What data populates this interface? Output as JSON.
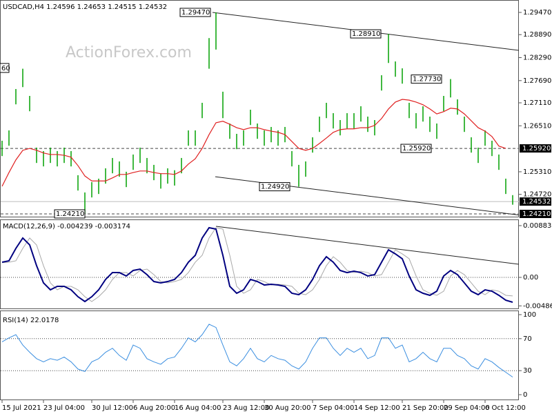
{
  "title": "USDCAD,H4  1.24596 1.24653 1.24515 1.24532",
  "watermark": "ActionForex.com",
  "clipped_label": "60",
  "chart_data": [
    {
      "type": "hilo",
      "color": "#00a000",
      "ma_color": "#e02020",
      "categories": [
        "15 Jul 2021",
        null,
        null,
        null,
        null,
        null,
        "23 Jul 04:00",
        null,
        null,
        null,
        null,
        null,
        null,
        "30 Jul 12:00",
        null,
        null,
        null,
        null,
        null,
        "6 Aug 20:00",
        null,
        null,
        null,
        null,
        null,
        "16 Aug 04:00",
        null,
        null,
        null,
        null,
        null,
        null,
        "23 Aug 12:00",
        null,
        null,
        null,
        null,
        null,
        "30 Aug 20:00",
        null,
        null,
        null,
        null,
        null,
        null,
        "7 Sep 04:00",
        null,
        null,
        null,
        null,
        null,
        "14 Sep 12:00",
        null,
        null,
        null,
        null,
        null,
        null,
        "21 Sep 20:00",
        null,
        null,
        null,
        null,
        null,
        "29 Sep 04:00",
        null,
        null,
        null,
        null,
        null,
        "6 Oct 12:00",
        null,
        null,
        null,
        null
      ],
      "high": [
        1.2612,
        1.2639,
        1.2747,
        1.28,
        1.2729,
        1.2594,
        1.2585,
        1.2594,
        1.2585,
        1.2594,
        1.2585,
        1.2522,
        1.2477,
        1.2504,
        1.2513,
        1.254,
        1.2567,
        1.2558,
        1.2531,
        1.2576,
        1.2594,
        1.2567,
        1.2549,
        1.2527,
        1.254,
        1.2535,
        1.2567,
        1.2639,
        1.2639,
        1.2711,
        1.288,
        1.2947,
        1.274,
        1.2657,
        1.263,
        1.2639,
        1.2693,
        1.2657,
        1.2639,
        1.2648,
        1.2639,
        1.2648,
        1.2585,
        1.2549,
        1.2558,
        1.2621,
        1.2675,
        1.2711,
        1.2684,
        1.2666,
        1.2684,
        1.2684,
        1.2702,
        1.2675,
        1.2666,
        1.2783,
        1.2891,
        1.2819,
        1.2801,
        1.2711,
        1.2684,
        1.2702,
        1.2675,
        1.2657,
        1.2729,
        1.2773,
        1.272,
        1.2675,
        1.2621,
        1.2594,
        1.2639,
        1.2612,
        1.2576,
        1.2513,
        1.247
      ],
      "low": [
        1.2572,
        1.2599,
        1.2707,
        1.2752,
        1.2689,
        1.2554,
        1.2545,
        1.2554,
        1.2545,
        1.2554,
        1.2545,
        1.2482,
        1.2421,
        1.2464,
        1.2473,
        1.25,
        1.2527,
        1.2518,
        1.2491,
        1.2536,
        1.2554,
        1.2527,
        1.2509,
        1.2487,
        1.25,
        1.2495,
        1.2527,
        1.2599,
        1.2599,
        1.2671,
        1.28,
        1.285,
        1.2671,
        1.2617,
        1.259,
        1.2599,
        1.2653,
        1.2617,
        1.2599,
        1.2608,
        1.2599,
        1.2608,
        1.2545,
        1.2492,
        1.2518,
        1.2581,
        1.2635,
        1.2671,
        1.2644,
        1.2626,
        1.2644,
        1.2644,
        1.2662,
        1.2635,
        1.2626,
        1.2743,
        1.2815,
        1.2779,
        1.2761,
        1.2671,
        1.2644,
        1.2662,
        1.2635,
        1.2617,
        1.2689,
        1.2725,
        1.268,
        1.2635,
        1.2581,
        1.2554,
        1.2599,
        1.2572,
        1.2536,
        1.2473,
        1.2445
      ],
      "ma": [
        1.2493,
        1.2529,
        1.2562,
        1.2587,
        1.2592,
        1.2587,
        1.258,
        1.2576,
        1.2576,
        1.2574,
        1.2569,
        1.2547,
        1.252,
        1.2507,
        1.2507,
        1.2507,
        1.2515,
        1.2524,
        1.2524,
        1.2529,
        1.2533,
        1.2533,
        1.2529,
        1.2526,
        1.2526,
        1.2524,
        1.2533,
        1.2551,
        1.2565,
        1.2592,
        1.2628,
        1.2659,
        1.2663,
        1.2655,
        1.2646,
        1.2641,
        1.2646,
        1.2646,
        1.2641,
        1.2637,
        1.2634,
        1.2628,
        1.261,
        1.2592,
        1.2587,
        1.2592,
        1.2605,
        1.2619,
        1.2634,
        1.2641,
        1.2643,
        1.2643,
        1.2646,
        1.2646,
        1.2652,
        1.267,
        1.2695,
        1.2713,
        1.272,
        1.2718,
        1.2713,
        1.2706,
        1.2695,
        1.2682,
        1.2688,
        1.2697,
        1.2695,
        1.2682,
        1.2664,
        1.2646,
        1.2637,
        1.2623,
        1.2598,
        1.2592,
        null
      ],
      "ylim": [
        1.24138,
        1.29758
      ],
      "yticks": [
        {
          "value": 1.2947,
          "label": "1.29470"
        },
        {
          "value": 1.2889,
          "label": "1.28890"
        },
        {
          "value": 1.2829,
          "label": "1.28290"
        },
        {
          "value": 1.2769,
          "label": "1.27690"
        },
        {
          "value": 1.2711,
          "label": "1.27110"
        },
        {
          "value": 1.2651,
          "label": "1.26510"
        },
        {
          "value": 1.2531,
          "label": "1.25310"
        },
        {
          "value": 1.2472,
          "label": "1.24720"
        }
      ],
      "levels": [
        {
          "value": 1.2592,
          "label": "1.25920",
          "style": "dashed"
        },
        {
          "value": 1.2421,
          "label": "1.24210",
          "style": "dashed"
        },
        {
          "value": 1.24532,
          "label": "1.24532",
          "style": "solid"
        }
      ],
      "trendlines": [
        {
          "x": [
            30.5,
            74.9
          ],
          "y": [
            1.2947,
            1.2848
          ]
        },
        {
          "x": [
            30.9,
            74.9
          ],
          "y": [
            1.2518,
            1.2418
          ]
        }
      ],
      "annotations": [
        {
          "label": "1.29470",
          "value": 1.2947,
          "at": 30.2
        },
        {
          "label": "1.28910",
          "value": 1.2891,
          "at": 54.9
        },
        {
          "label": "1.27730",
          "value": 1.2773,
          "at": 63.7
        },
        {
          "label": "1.25920",
          "value": 1.2592,
          "at": 62.2
        },
        {
          "label": "1.24920",
          "value": 1.2492,
          "at": 41.7
        },
        {
          "label": "1.24210",
          "value": 1.2421,
          "at": 12
        }
      ]
    },
    {
      "type": "line",
      "label": "MACD(12,26,9) -0.004239 -0.003174",
      "color": "#000080",
      "signal_color": "#a8a8a8",
      "values": [
        0.00259,
        0.00283,
        0.00495,
        0.00672,
        0.00554,
        0.002,
        -0.00094,
        -0.00212,
        -0.00153,
        -0.00153,
        -0.00212,
        -0.0033,
        -0.00412,
        -0.0033,
        -0.00212,
        -0.00035,
        0.00082,
        0.00082,
        0.00024,
        0.00118,
        0.00141,
        0.00047,
        -0.00071,
        -0.00094,
        -0.00071,
        -0.00035,
        0.00082,
        0.00259,
        0.00377,
        0.00672,
        0.00848,
        0.00825,
        0.00377,
        -0.00153,
        -0.00271,
        -0.00212,
        -0.00035,
        -0.00071,
        -0.0013,
        -0.00118,
        -0.0013,
        -0.00153,
        -0.00271,
        -0.00295,
        -0.00212,
        -0.00035,
        0.002,
        0.00353,
        0.00259,
        0.00118,
        0.00082,
        0.00106,
        0.00082,
        0.00024,
        0.00047,
        0.00259,
        0.00471,
        0.00401,
        0.00318,
        0.00024,
        -0.00212,
        -0.00271,
        -0.00306,
        -0.00236,
        0.00024,
        0.00118,
        0.00047,
        -0.00094,
        -0.00236,
        -0.00295,
        -0.00212,
        -0.00236,
        -0.00306,
        -0.00389,
        -0.00424
      ],
      "signal": [
        0.0025,
        0.00259,
        0.00283,
        0.00495,
        0.00672,
        0.00554,
        0.002,
        -0.00094,
        -0.00212,
        -0.00153,
        -0.00153,
        -0.00212,
        -0.0033,
        -0.00412,
        -0.0033,
        -0.00212,
        -0.00035,
        0.00082,
        0.00082,
        0.00024,
        0.00118,
        0.00141,
        0.00047,
        -0.00071,
        -0.00094,
        -0.00071,
        -0.00035,
        0.00082,
        0.00259,
        0.00377,
        0.00672,
        0.00848,
        0.00825,
        0.00377,
        -0.00153,
        -0.00271,
        -0.00212,
        -0.00035,
        -0.00071,
        -0.0013,
        -0.00118,
        -0.0013,
        -0.00153,
        -0.00271,
        -0.00295,
        -0.00212,
        -0.00035,
        0.002,
        0.00353,
        0.00259,
        0.00118,
        0.00082,
        0.00106,
        0.00082,
        0.00024,
        0.00047,
        0.00259,
        0.00471,
        0.00401,
        0.00318,
        0.00024,
        -0.00212,
        -0.00271,
        -0.00306,
        -0.00236,
        0.00024,
        0.00118,
        0.00047,
        -0.00094,
        -0.00236,
        -0.00295,
        -0.00212,
        -0.00236,
        -0.00306,
        -0.00317
      ],
      "ylim": [
        -0.0053,
        0.00966
      ],
      "yticks": [
        0.008837,
        {
          "value": 0,
          "label": "0.00"
        },
        -0.004862
      ],
      "levels": [
        {
          "value": 0,
          "style": "dotted"
        }
      ],
      "trendlines": [
        {
          "x": [
            31,
            74.9
          ],
          "y": [
            0.00872,
            0.00224
          ]
        }
      ]
    },
    {
      "type": "line",
      "label": "RSI(14) 22.0178",
      "color": "#3a8ee0",
      "values": [
        66,
        71,
        75,
        62,
        53,
        45,
        41,
        45,
        43,
        47,
        41,
        32,
        29,
        41,
        45,
        53,
        58,
        49,
        43,
        62,
        58,
        45,
        41,
        38,
        45,
        47,
        58,
        71,
        66,
        75,
        88,
        84,
        62,
        41,
        36,
        45,
        58,
        45,
        41,
        49,
        45,
        43,
        36,
        32,
        41,
        58,
        71,
        71,
        58,
        49,
        58,
        53,
        58,
        45,
        49,
        71,
        71,
        58,
        62,
        41,
        45,
        53,
        45,
        41,
        58,
        58,
        49,
        45,
        36,
        32,
        45,
        41,
        34,
        28,
        22
      ],
      "ylim": [
        0,
        100
      ],
      "yticks": [
        100,
        70,
        30,
        0
      ],
      "levels": [
        {
          "value": 70,
          "style": "dotted"
        },
        {
          "value": 30,
          "style": "dotted"
        }
      ]
    }
  ]
}
